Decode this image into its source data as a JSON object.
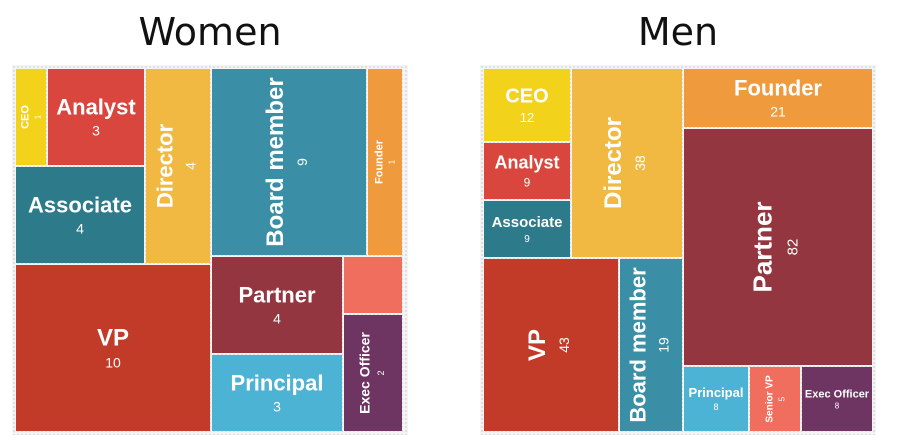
{
  "chart_data": [
    {
      "type": "treemap",
      "title": "Women",
      "items": [
        {
          "label": "CEO",
          "value": 1,
          "color": "#f2d21b"
        },
        {
          "label": "Analyst",
          "value": 3,
          "color": "#d9463e"
        },
        {
          "label": "Associate",
          "value": 4,
          "color": "#2d7b8a"
        },
        {
          "label": "Director",
          "value": 4,
          "color": "#f1b942"
        },
        {
          "label": "Board member",
          "value": 9,
          "color": "#3a8fa6"
        },
        {
          "label": "Founder",
          "value": 1,
          "color": "#f09a3e"
        },
        {
          "label": "VP",
          "value": 10,
          "color": "#c23b28"
        },
        {
          "label": "Partner",
          "value": 4,
          "color": "#943640"
        },
        {
          "label": "",
          "value": 1,
          "color": "#f06e5e"
        },
        {
          "label": "Principal",
          "value": 3,
          "color": "#4cb3d4"
        },
        {
          "label": "Exec Officer",
          "value": 2,
          "color": "#6e3562"
        }
      ]
    },
    {
      "type": "treemap",
      "title": "Men",
      "items": [
        {
          "label": "CEO",
          "value": 12,
          "color": "#f2d21b"
        },
        {
          "label": "Analyst",
          "value": 9,
          "color": "#d9463e"
        },
        {
          "label": "Associate",
          "value": 9,
          "color": "#2d7b8a"
        },
        {
          "label": "Director",
          "value": 38,
          "color": "#f1b942"
        },
        {
          "label": "Founder",
          "value": 21,
          "color": "#f09a3e"
        },
        {
          "label": "Partner",
          "value": 82,
          "color": "#943640"
        },
        {
          "label": "VP",
          "value": 43,
          "color": "#c23b28"
        },
        {
          "label": "Board member",
          "value": 19,
          "color": "#3a8fa6"
        },
        {
          "label": "Principal",
          "value": 8,
          "color": "#4cb3d4"
        },
        {
          "label": "Senior VP",
          "value": 5,
          "color": "#f06e5e"
        },
        {
          "label": "Exec Officer",
          "value": 8,
          "color": "#6e3562"
        }
      ]
    }
  ]
}
